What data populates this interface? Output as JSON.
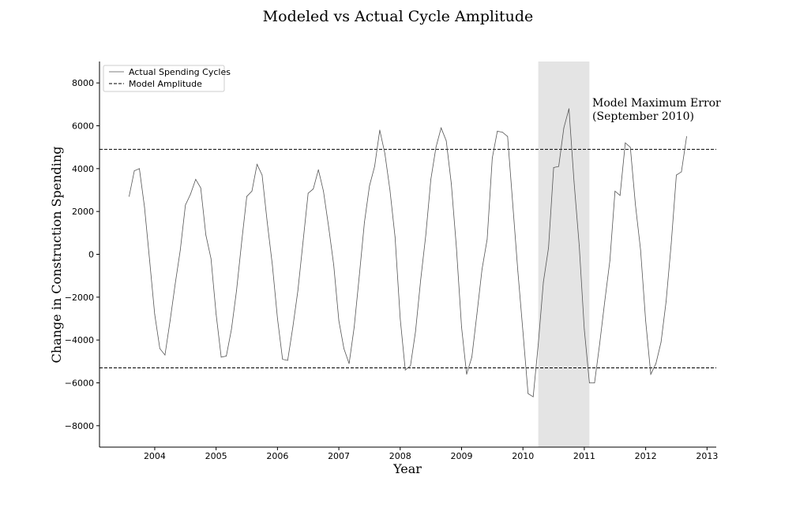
{
  "chart_data": {
    "type": "line",
    "title": "Modeled vs Actual Cycle Amplitude",
    "xlabel": "Year",
    "ylabel": "Change in Construction Spending",
    "xlim": [
      2003.1,
      2013.15
    ],
    "ylim": [
      -9000,
      9000
    ],
    "xticks": [
      2004,
      2005,
      2006,
      2007,
      2008,
      2009,
      2010,
      2011,
      2012,
      2013
    ],
    "yticks": [
      -8000,
      -6000,
      -4000,
      -2000,
      0,
      2000,
      4000,
      6000,
      8000
    ],
    "grid": false,
    "legend_position": "top-left",
    "series": [
      {
        "name": "Actual Spending Cycles",
        "style": "solid",
        "color": "#555555",
        "x": [
          2003.583,
          2003.667,
          2003.75,
          2003.833,
          2003.917,
          2004.0,
          2004.083,
          2004.167,
          2004.25,
          2004.333,
          2004.417,
          2004.5,
          2004.583,
          2004.667,
          2004.75,
          2004.833,
          2004.917,
          2005.0,
          2005.083,
          2005.167,
          2005.25,
          2005.333,
          2005.417,
          2005.5,
          2005.583,
          2005.667,
          2005.75,
          2005.833,
          2005.917,
          2006.0,
          2006.083,
          2006.167,
          2006.25,
          2006.333,
          2006.417,
          2006.5,
          2006.583,
          2006.667,
          2006.75,
          2006.833,
          2006.917,
          2007.0,
          2007.083,
          2007.167,
          2007.25,
          2007.333,
          2007.417,
          2007.5,
          2007.583,
          2007.667,
          2007.75,
          2007.833,
          2007.917,
          2008.0,
          2008.083,
          2008.167,
          2008.25,
          2008.333,
          2008.417,
          2008.5,
          2008.583,
          2008.667,
          2008.75,
          2008.833,
          2008.917,
          2009.0,
          2009.083,
          2009.167,
          2009.25,
          2009.333,
          2009.417,
          2009.5,
          2009.583,
          2009.667,
          2009.75,
          2009.833,
          2009.917,
          2010.0,
          2010.083,
          2010.167,
          2010.25,
          2010.333,
          2010.417,
          2010.5,
          2010.583,
          2010.667,
          2010.75,
          2010.833,
          2010.917,
          2011.0,
          2011.083,
          2011.167,
          2011.25,
          2011.333,
          2011.417,
          2011.5,
          2011.583,
          2011.667,
          2011.75,
          2011.833,
          2011.917,
          2012.0,
          2012.083,
          2012.167,
          2012.25,
          2012.333,
          2012.417,
          2012.5,
          2012.583,
          2012.667
        ],
        "values": [
          2700,
          3900,
          4000,
          2200,
          -300,
          -2800,
          -4400,
          -4700,
          -3100,
          -1400,
          200,
          2300,
          2800,
          3500,
          3100,
          900,
          -200,
          -2800,
          -4800,
          -4750,
          -3500,
          -1700,
          600,
          2700,
          2950,
          4200,
          3700,
          1500,
          -500,
          -3000,
          -4900,
          -4950,
          -3400,
          -1700,
          600,
          2850,
          3050,
          3950,
          2950,
          1300,
          -500,
          -3100,
          -4400,
          -5100,
          -3400,
          -1000,
          1500,
          3200,
          4100,
          5800,
          4700,
          3000,
          800,
          -3000,
          -5400,
          -5200,
          -3600,
          -1200,
          900,
          3500,
          5000,
          5900,
          5300,
          3300,
          300,
          -3400,
          -5600,
          -4800,
          -2800,
          -700,
          700,
          4500,
          5750,
          5700,
          5500,
          2400,
          -800,
          -3600,
          -6500,
          -6650,
          -4200,
          -1300,
          300,
          4050,
          4100,
          5900,
          6800,
          3400,
          400,
          -3500,
          -6000,
          -6000,
          -4200,
          -2200,
          -300,
          2950,
          2750,
          5200,
          5000,
          2300,
          200,
          -3100,
          -5600,
          -5100,
          -4100,
          -2200,
          500,
          3700,
          3850,
          5500
        ]
      },
      {
        "name": "Model Amplitude",
        "style": "dashed",
        "color": "#000000",
        "upper": 4900,
        "lower": -5300
      }
    ],
    "highlight_span": {
      "x": [
        2010.25,
        2011.083
      ],
      "color": "#e4e4e4"
    },
    "annotation": {
      "line1": "Model Maximum Error",
      "line2": "(September 2010)",
      "x": 2011.13,
      "y": 6900
    }
  }
}
